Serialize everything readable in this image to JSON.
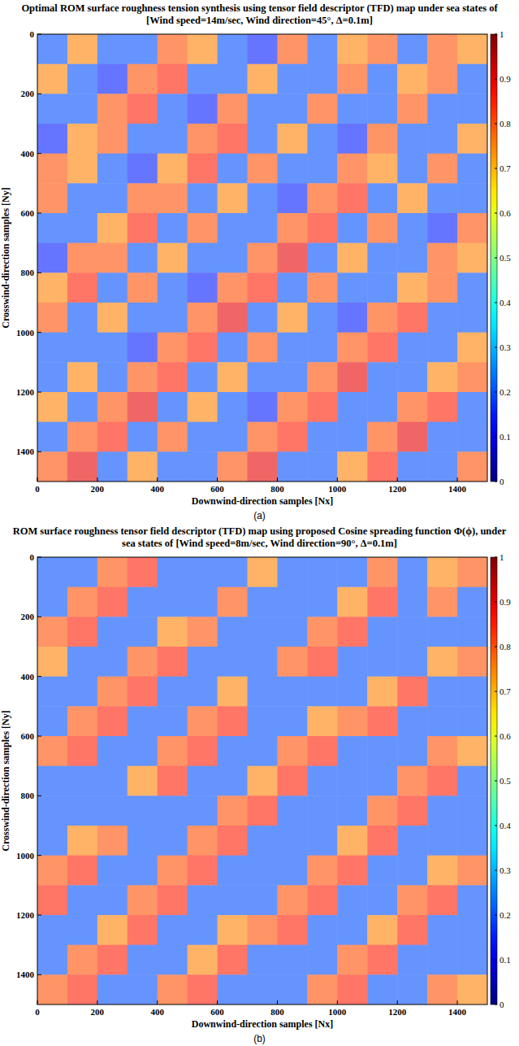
{
  "chart_data": [
    {
      "type": "heatmap",
      "title": "Optimal ROM surface roughness tension synthesis using tensor field descriptor (TFD) map under sea states of [Wind speed=14m/sec, Wind direction=45°, Δ=0.1m]",
      "x_label": "Downwind-direction samples [Nx]",
      "y_label": "Crosswind-direction samples [Ny]",
      "panel": "(a)",
      "xlim": [
        0,
        1500
      ],
      "ylim": [
        0,
        1500
      ],
      "xticks": [
        0,
        200,
        400,
        600,
        800,
        1000,
        1200,
        1400
      ],
      "yticks": [
        0,
        200,
        400,
        600,
        800,
        1000,
        1200,
        1400
      ],
      "color_range": [
        0,
        1
      ],
      "color_ticks": [
        0,
        0.1,
        0.2,
        0.3,
        0.4,
        0.5,
        0.6,
        0.7,
        0.8,
        0.9,
        1
      ],
      "cells": [
        [
          0.2,
          0.75,
          0.2,
          0.2,
          0.8,
          0.75,
          0.2,
          0.15,
          0.8,
          0.2,
          0.75,
          0.8,
          0.2,
          0.8,
          0.75
        ],
        [
          0.75,
          0.2,
          0.15,
          0.8,
          0.85,
          0.2,
          0.2,
          0.75,
          0.2,
          0.2,
          0.8,
          0.2,
          0.75,
          0.8,
          0.2
        ],
        [
          0.2,
          0.2,
          0.8,
          0.85,
          0.2,
          0.15,
          0.8,
          0.2,
          0.2,
          0.8,
          0.2,
          0.2,
          0.8,
          0.2,
          0.2
        ],
        [
          0.15,
          0.75,
          0.8,
          0.2,
          0.2,
          0.8,
          0.85,
          0.2,
          0.75,
          0.2,
          0.15,
          0.8,
          0.2,
          0.2,
          0.75
        ],
        [
          0.8,
          0.75,
          0.2,
          0.15,
          0.75,
          0.85,
          0.2,
          0.8,
          0.2,
          0.2,
          0.8,
          0.75,
          0.2,
          0.8,
          0.2
        ],
        [
          0.8,
          0.2,
          0.2,
          0.8,
          0.8,
          0.2,
          0.75,
          0.2,
          0.15,
          0.8,
          0.85,
          0.2,
          0.75,
          0.2,
          0.2
        ],
        [
          0.2,
          0.2,
          0.75,
          0.85,
          0.2,
          0.8,
          0.2,
          0.2,
          0.8,
          0.85,
          0.2,
          0.8,
          0.2,
          0.15,
          0.8
        ],
        [
          0.15,
          0.8,
          0.8,
          0.2,
          0.75,
          0.2,
          0.2,
          0.8,
          0.9,
          0.2,
          0.75,
          0.2,
          0.2,
          0.8,
          0.75
        ],
        [
          0.75,
          0.85,
          0.2,
          0.8,
          0.2,
          0.15,
          0.8,
          0.85,
          0.2,
          0.8,
          0.2,
          0.2,
          0.75,
          0.8,
          0.2
        ],
        [
          0.8,
          0.2,
          0.75,
          0.2,
          0.2,
          0.8,
          0.9,
          0.2,
          0.75,
          0.2,
          0.15,
          0.8,
          0.85,
          0.2,
          0.2
        ],
        [
          0.2,
          0.2,
          0.2,
          0.15,
          0.8,
          0.85,
          0.2,
          0.8,
          0.2,
          0.2,
          0.8,
          0.85,
          0.2,
          0.2,
          0.75
        ],
        [
          0.2,
          0.75,
          0.2,
          0.8,
          0.85,
          0.2,
          0.75,
          0.2,
          0.2,
          0.8,
          0.9,
          0.2,
          0.2,
          0.75,
          0.8
        ],
        [
          0.75,
          0.2,
          0.8,
          0.9,
          0.2,
          0.75,
          0.2,
          0.15,
          0.8,
          0.85,
          0.2,
          0.2,
          0.8,
          0.85,
          0.2
        ],
        [
          0.2,
          0.8,
          0.85,
          0.2,
          0.8,
          0.2,
          0.2,
          0.8,
          0.85,
          0.2,
          0.2,
          0.8,
          0.9,
          0.2,
          0.2
        ],
        [
          0.8,
          0.9,
          0.2,
          0.75,
          0.2,
          0.2,
          0.8,
          0.9,
          0.2,
          0.2,
          0.75,
          0.85,
          0.2,
          0.2,
          0.8
        ]
      ]
    },
    {
      "type": "heatmap",
      "title": "ROM surface roughness tensor field descriptor (TFD) map using proposed Cosine spreading function Φ(ϕ), under sea states of [Wind speed=8m/sec, Wind direction=90°, Δ=0.1m]",
      "x_label": "Downwind-direction samples [Nx]",
      "y_label": "Crosswind-direction samples [Ny]",
      "panel": "(b)",
      "xlim": [
        0,
        1500
      ],
      "ylim": [
        0,
        1500
      ],
      "xticks": [
        0,
        200,
        400,
        600,
        800,
        1000,
        1200,
        1400
      ],
      "yticks": [
        0,
        200,
        400,
        600,
        800,
        1000,
        1200,
        1400
      ],
      "color_range": [
        0,
        1
      ],
      "color_ticks": [
        0,
        0.1,
        0.2,
        0.3,
        0.4,
        0.5,
        0.6,
        0.7,
        0.8,
        0.9,
        1
      ],
      "cells": [
        [
          0.2,
          0.2,
          0.8,
          0.85,
          0.2,
          0.2,
          0.2,
          0.75,
          0.2,
          0.2,
          0.2,
          0.8,
          0.2,
          0.75,
          0.8
        ],
        [
          0.2,
          0.8,
          0.85,
          0.2,
          0.2,
          0.2,
          0.8,
          0.2,
          0.2,
          0.2,
          0.75,
          0.85,
          0.2,
          0.8,
          0.2
        ],
        [
          0.8,
          0.85,
          0.2,
          0.2,
          0.75,
          0.8,
          0.2,
          0.2,
          0.2,
          0.8,
          0.85,
          0.2,
          0.2,
          0.2,
          0.2
        ],
        [
          0.75,
          0.2,
          0.2,
          0.8,
          0.85,
          0.2,
          0.2,
          0.2,
          0.8,
          0.85,
          0.2,
          0.2,
          0.2,
          0.75,
          0.8
        ],
        [
          0.2,
          0.2,
          0.8,
          0.85,
          0.2,
          0.2,
          0.75,
          0.2,
          0.2,
          0.2,
          0.2,
          0.75,
          0.85,
          0.2,
          0.2
        ],
        [
          0.2,
          0.8,
          0.85,
          0.2,
          0.2,
          0.8,
          0.85,
          0.2,
          0.2,
          0.75,
          0.8,
          0.85,
          0.2,
          0.2,
          0.2
        ],
        [
          0.8,
          0.85,
          0.2,
          0.2,
          0.8,
          0.85,
          0.2,
          0.2,
          0.8,
          0.85,
          0.2,
          0.2,
          0.2,
          0.8,
          0.75
        ],
        [
          0.2,
          0.2,
          0.2,
          0.75,
          0.85,
          0.2,
          0.2,
          0.75,
          0.85,
          0.2,
          0.2,
          0.2,
          0.8,
          0.85,
          0.2
        ],
        [
          0.2,
          0.2,
          0.2,
          0.2,
          0.2,
          0.2,
          0.8,
          0.85,
          0.2,
          0.2,
          0.2,
          0.8,
          0.85,
          0.2,
          0.2
        ],
        [
          0.2,
          0.75,
          0.8,
          0.2,
          0.2,
          0.8,
          0.85,
          0.2,
          0.2,
          0.2,
          0.75,
          0.85,
          0.2,
          0.2,
          0.2
        ],
        [
          0.8,
          0.85,
          0.2,
          0.2,
          0.8,
          0.85,
          0.2,
          0.2,
          0.2,
          0.8,
          0.85,
          0.2,
          0.2,
          0.75,
          0.8
        ],
        [
          0.85,
          0.2,
          0.2,
          0.8,
          0.85,
          0.2,
          0.2,
          0.2,
          0.8,
          0.85,
          0.2,
          0.2,
          0.8,
          0.85,
          0.2
        ],
        [
          0.2,
          0.2,
          0.75,
          0.85,
          0.2,
          0.2,
          0.75,
          0.8,
          0.85,
          0.2,
          0.2,
          0.75,
          0.85,
          0.2,
          0.2
        ],
        [
          0.2,
          0.8,
          0.85,
          0.2,
          0.2,
          0.75,
          0.85,
          0.2,
          0.2,
          0.2,
          0.8,
          0.85,
          0.2,
          0.2,
          0.2
        ],
        [
          0.8,
          0.85,
          0.2,
          0.2,
          0.8,
          0.85,
          0.2,
          0.2,
          0.2,
          0.8,
          0.85,
          0.2,
          0.2,
          0.8,
          0.75
        ]
      ]
    }
  ]
}
